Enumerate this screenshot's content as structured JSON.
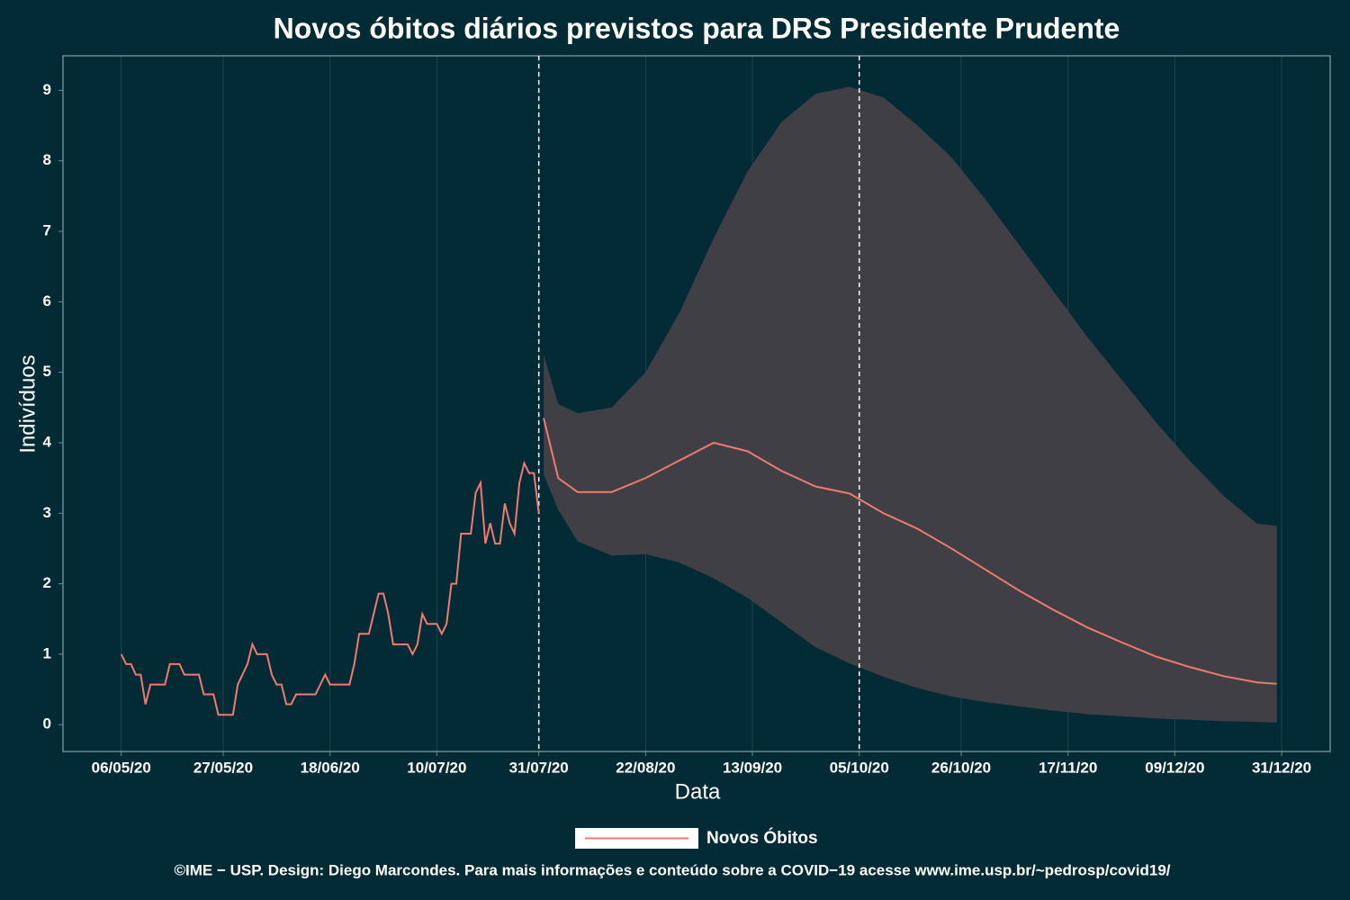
{
  "chart_data": {
    "type": "line",
    "title": "Novos óbitos diários previstos para DRS Presidente Prudente",
    "x_label": "Data",
    "y_label": "Indivíduos",
    "footer": "©IME − USP. Design: Diego Marcondes. Para mais informações e conteúdo sobre a COVID−19 acesse www.ime.usp.br/~pedrosp/covid19/",
    "xlim": [
      "2020-04-24",
      "2021-01-10"
    ],
    "xticks": [
      {
        "value": "2020-05-06",
        "label": "06/05/20"
      },
      {
        "value": "2020-05-27",
        "label": "27/05/20"
      },
      {
        "value": "2020-06-18",
        "label": "18/06/20"
      },
      {
        "value": "2020-07-10",
        "label": "10/07/20"
      },
      {
        "value": "2020-07-31",
        "label": "31/07/20"
      },
      {
        "value": "2020-08-22",
        "label": "22/08/20"
      },
      {
        "value": "2020-09-13",
        "label": "13/09/20"
      },
      {
        "value": "2020-10-05",
        "label": "05/10/20"
      },
      {
        "value": "2020-10-26",
        "label": "26/10/20"
      },
      {
        "value": "2020-11-17",
        "label": "17/11/20"
      },
      {
        "value": "2020-12-09",
        "label": "09/12/20"
      },
      {
        "value": "2020-12-31",
        "label": "31/12/20"
      }
    ],
    "ylim": [
      -0.38,
      9.49
    ],
    "yticks": [
      0,
      1,
      2,
      3,
      4,
      5,
      6,
      7,
      8,
      9
    ],
    "grid": true,
    "vlines": [
      "2020-07-31",
      "2020-10-05"
    ],
    "x": [
      "2020-05-06",
      "2020-05-07",
      "2020-05-08",
      "2020-05-09",
      "2020-05-10",
      "2020-05-11",
      "2020-05-12",
      "2020-05-15",
      "2020-05-16",
      "2020-05-18",
      "2020-05-19",
      "2020-05-22",
      "2020-05-23",
      "2020-05-25",
      "2020-05-26",
      "2020-05-29",
      "2020-05-30",
      "2020-06-01",
      "2020-06-02",
      "2020-06-03",
      "2020-06-05",
      "2020-06-06",
      "2020-06-07",
      "2020-06-08",
      "2020-06-09",
      "2020-06-10",
      "2020-06-11",
      "2020-06-14",
      "2020-06-15",
      "2020-06-17",
      "2020-06-18",
      "2020-06-22",
      "2020-06-23",
      "2020-06-24",
      "2020-06-26",
      "2020-06-28",
      "2020-06-29",
      "2020-06-30",
      "2020-07-01",
      "2020-07-04",
      "2020-07-05",
      "2020-07-06",
      "2020-07-07",
      "2020-07-08",
      "2020-07-10",
      "2020-07-11",
      "2020-07-12",
      "2020-07-13",
      "2020-07-14",
      "2020-07-15",
      "2020-07-17",
      "2020-07-18",
      "2020-07-19",
      "2020-07-20",
      "2020-07-21",
      "2020-07-22",
      "2020-07-23",
      "2020-07-24",
      "2020-07-25",
      "2020-07-26",
      "2020-07-27",
      "2020-07-28",
      "2020-07-29",
      "2020-07-30",
      "2020-07-31"
    ],
    "series": [
      {
        "name": "Novos Óbitos",
        "color": "#f07a70",
        "values": [
          1.0,
          0.86,
          0.86,
          0.71,
          0.71,
          0.29,
          0.57,
          0.57,
          0.86,
          0.86,
          0.71,
          0.71,
          0.43,
          0.43,
          0.14,
          0.14,
          0.57,
          0.86,
          1.14,
          1.0,
          1.0,
          0.71,
          0.57,
          0.57,
          0.29,
          0.29,
          0.43,
          0.43,
          0.43,
          0.71,
          0.57,
          0.57,
          0.86,
          1.29,
          1.29,
          1.86,
          1.86,
          1.57,
          1.14,
          1.14,
          1.0,
          1.14,
          1.57,
          1.43,
          1.43,
          1.29,
          1.43,
          2.0,
          2.0,
          2.71,
          2.71,
          3.29,
          3.43,
          2.57,
          2.86,
          2.57,
          2.57,
          3.14,
          2.86,
          2.71,
          3.43,
          3.71,
          3.57,
          3.57,
          3.0
        ]
      }
    ],
    "forecast": {
      "band_color": "#403f45",
      "x": [
        "2020-08-01",
        "2020-08-04",
        "2020-08-08",
        "2020-08-15",
        "2020-08-22",
        "2020-08-29",
        "2020-09-05",
        "2020-09-12",
        "2020-09-19",
        "2020-09-26",
        "2020-10-03",
        "2020-10-10",
        "2020-10-17",
        "2020-10-24",
        "2020-10-31",
        "2020-11-07",
        "2020-11-14",
        "2020-11-21",
        "2020-11-28",
        "2020-12-05",
        "2020-12-12",
        "2020-12-19",
        "2020-12-26",
        "2020-12-30"
      ],
      "values": [
        4.35,
        3.5,
        3.3,
        3.3,
        3.5,
        3.75,
        4.0,
        3.88,
        3.6,
        3.38,
        3.28,
        3.0,
        2.78,
        2.5,
        2.2,
        1.9,
        1.63,
        1.38,
        1.17,
        0.97,
        0.82,
        0.69,
        0.6,
        0.58
      ],
      "upper": [
        5.25,
        4.55,
        4.42,
        4.5,
        5.0,
        5.85,
        6.9,
        7.85,
        8.55,
        8.95,
        9.05,
        8.9,
        8.5,
        8.05,
        7.45,
        6.8,
        6.15,
        5.5,
        4.9,
        4.3,
        3.75,
        3.25,
        2.85,
        2.82
      ],
      "lower": [
        3.55,
        3.05,
        2.6,
        2.4,
        2.42,
        2.3,
        2.08,
        1.8,
        1.45,
        1.1,
        0.87,
        0.68,
        0.52,
        0.4,
        0.32,
        0.26,
        0.2,
        0.15,
        0.12,
        0.09,
        0.07,
        0.05,
        0.04,
        0.03
      ]
    }
  }
}
